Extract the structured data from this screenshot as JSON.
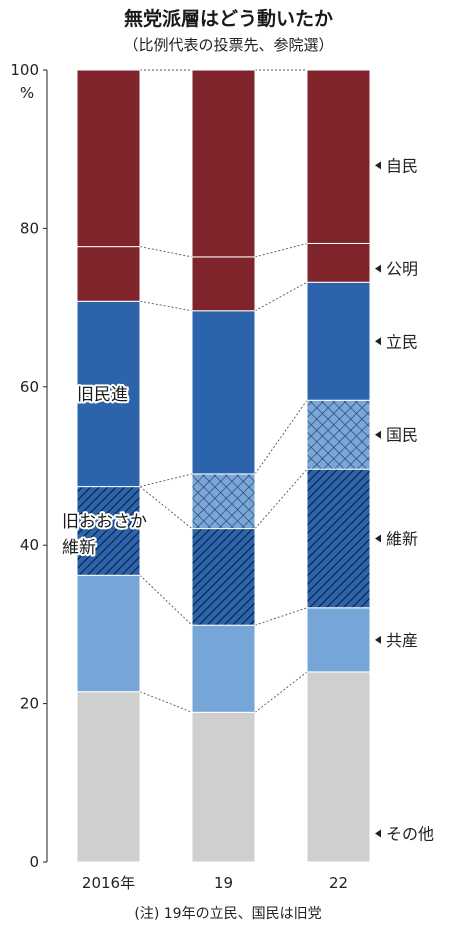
{
  "header": {
    "title": "無党派層はどう動いたか",
    "subtitle": "（比例代表の投票先、参院選）"
  },
  "colors": {
    "自民": "#7e242a",
    "公明": "#7e242a",
    "立民": "#2c64ac",
    "国民": "#7aa7d6",
    "維新": "#2c64ac",
    "共産": "#76a6d8",
    "その他": "#cfcfcf"
  },
  "chart_data": {
    "type": "bar",
    "stacked": true,
    "title": "無党派層はどう動いたか",
    "subtitle": "（比例代表の投票先、参院選）",
    "categories": [
      "2016年",
      "19",
      "22"
    ],
    "ylim": [
      0,
      100
    ],
    "yticks": [
      0,
      20,
      40,
      60,
      80,
      100
    ],
    "yunit": "%",
    "grid": false,
    "legend": "right",
    "series": [
      {
        "name": "その他",
        "values": [
          21.5,
          18.9,
          24.0
        ],
        "pattern": "none"
      },
      {
        "name": "共産",
        "values": [
          14.7,
          11.0,
          8.1
        ],
        "pattern": "none"
      },
      {
        "name": "維新",
        "values": [
          11.2,
          12.2,
          17.5
        ],
        "pattern": "diagonal"
      },
      {
        "name": "国民",
        "values": [
          0,
          6.9,
          8.7
        ],
        "pattern": "crosshatch"
      },
      {
        "name": "立民",
        "values": [
          23.4,
          20.6,
          14.9
        ],
        "pattern": "none"
      },
      {
        "name": "公明",
        "values": [
          6.9,
          6.8,
          4.9
        ],
        "pattern": "none"
      },
      {
        "name": "自民",
        "values": [
          22.3,
          23.6,
          21.9
        ],
        "pattern": "none"
      }
    ],
    "annotations": [
      {
        "text": "旧民進",
        "category": "2016年",
        "series": [
          "立民"
        ]
      },
      {
        "text": "旧おおさか維新",
        "lines": [
          "旧おおさか",
          "維新"
        ],
        "category": "2016年",
        "series": [
          "維新"
        ]
      }
    ],
    "note": "(注) 19年の立民、国民は旧党"
  }
}
